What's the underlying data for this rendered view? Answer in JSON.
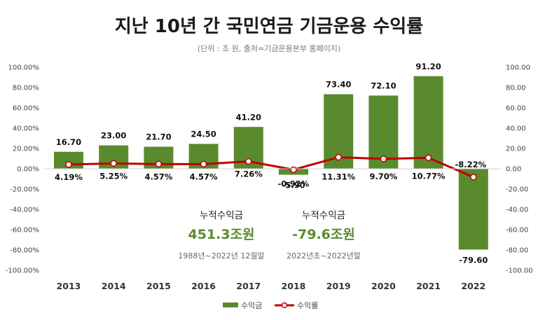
{
  "chart_data": {
    "type": "bar+line",
    "title": "지난 10년 간 국민연금 기금운용 수익률",
    "subtitle": "(단위 : 조 원, 출처=기금운용본부  홈페이지)",
    "categories": [
      "2013",
      "2014",
      "2015",
      "2016",
      "2017",
      "2018",
      "2019",
      "2020",
      "2021",
      "2022"
    ],
    "series": [
      {
        "name": "수익금",
        "type": "bar",
        "axis": "right",
        "color": "#5a8a2e",
        "values": [
          16.7,
          23.0,
          21.7,
          24.5,
          41.2,
          -5.9,
          73.4,
          72.1,
          91.2,
          -79.6
        ],
        "labels": [
          "16.70",
          "23.00",
          "21.70",
          "24.50",
          "41.20",
          "-5.90",
          "73.40",
          "72.10",
          "91.20",
          "-79.60"
        ]
      },
      {
        "name": "수익률",
        "type": "line",
        "axis": "left",
        "color": "#c00000",
        "values": [
          4.19,
          5.25,
          4.57,
          4.57,
          7.26,
          -0.92,
          11.31,
          9.7,
          10.77,
          -8.22
        ],
        "labels": [
          "4.19%",
          "5.25%",
          "4.57%",
          "4.57%",
          "7.26%",
          "-0.92%",
          "11.31%",
          "9.70%",
          "10.77%",
          "-8.22%"
        ]
      }
    ],
    "left_axis": {
      "range": [
        -100,
        100
      ],
      "ticks": [
        "100.00%",
        "80.00%",
        "60.00%",
        "40.00%",
        "20.00%",
        "0.00%",
        "-20.00%",
        "-40.00%",
        "-60.00%",
        "-80.00%",
        "-100.00%"
      ]
    },
    "right_axis": {
      "range": [
        -100,
        100
      ],
      "ticks": [
        "100.00",
        "80.00",
        "60.00",
        "40.00",
        "20.00",
        "0.00",
        "-20.00",
        "-40.00",
        "-60.00",
        "-80.00",
        "-100.00"
      ]
    },
    "grid": false,
    "legend_position": "bottom-center",
    "annotations": [
      {
        "heading": "누적수익금",
        "value": "451.3조원",
        "period": "1988년~2022년 12월말"
      },
      {
        "heading": "누적수익금",
        "value": "-79.6조원",
        "period": "2022년초~2022년말"
      }
    ]
  }
}
